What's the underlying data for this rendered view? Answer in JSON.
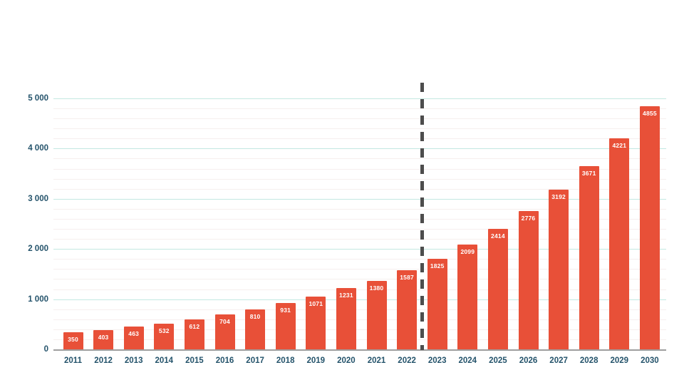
{
  "chart_data": {
    "type": "bar",
    "categories": [
      "2011",
      "2012",
      "2013",
      "2014",
      "2015",
      "2016",
      "2017",
      "2018",
      "2019",
      "2020",
      "2021",
      "2022",
      "2023",
      "2024",
      "2025",
      "2026",
      "2027",
      "2028",
      "2029",
      "2030"
    ],
    "values": [
      350,
      403,
      463,
      532,
      612,
      704,
      810,
      931,
      1071,
      1231,
      1380,
      1587,
      1825,
      2099,
      2414,
      2776,
      3192,
      3671,
      4221,
      4855
    ],
    "title": "",
    "xlabel": "",
    "ylabel": "",
    "ylim": [
      0,
      5000
    ],
    "ytick_values": [
      0,
      1000,
      2000,
      3000,
      4000,
      5000
    ],
    "ytick_labels": [
      "0",
      "1 000",
      "2 000",
      "3 000",
      "4 000",
      "5 000"
    ],
    "minor_grid_step": 200,
    "grid": true,
    "legend": "none",
    "divider_after_category": "2022",
    "colors": {
      "bar": "#e85038",
      "value_label": "#ffffff",
      "axis_text": "#24536b",
      "major_gridline": "#c3e8e1",
      "minor_gridline": "#f6efee",
      "baseline": "#9e9e9e",
      "divider": "#4d4d4d",
      "background": "#ffffff"
    }
  }
}
